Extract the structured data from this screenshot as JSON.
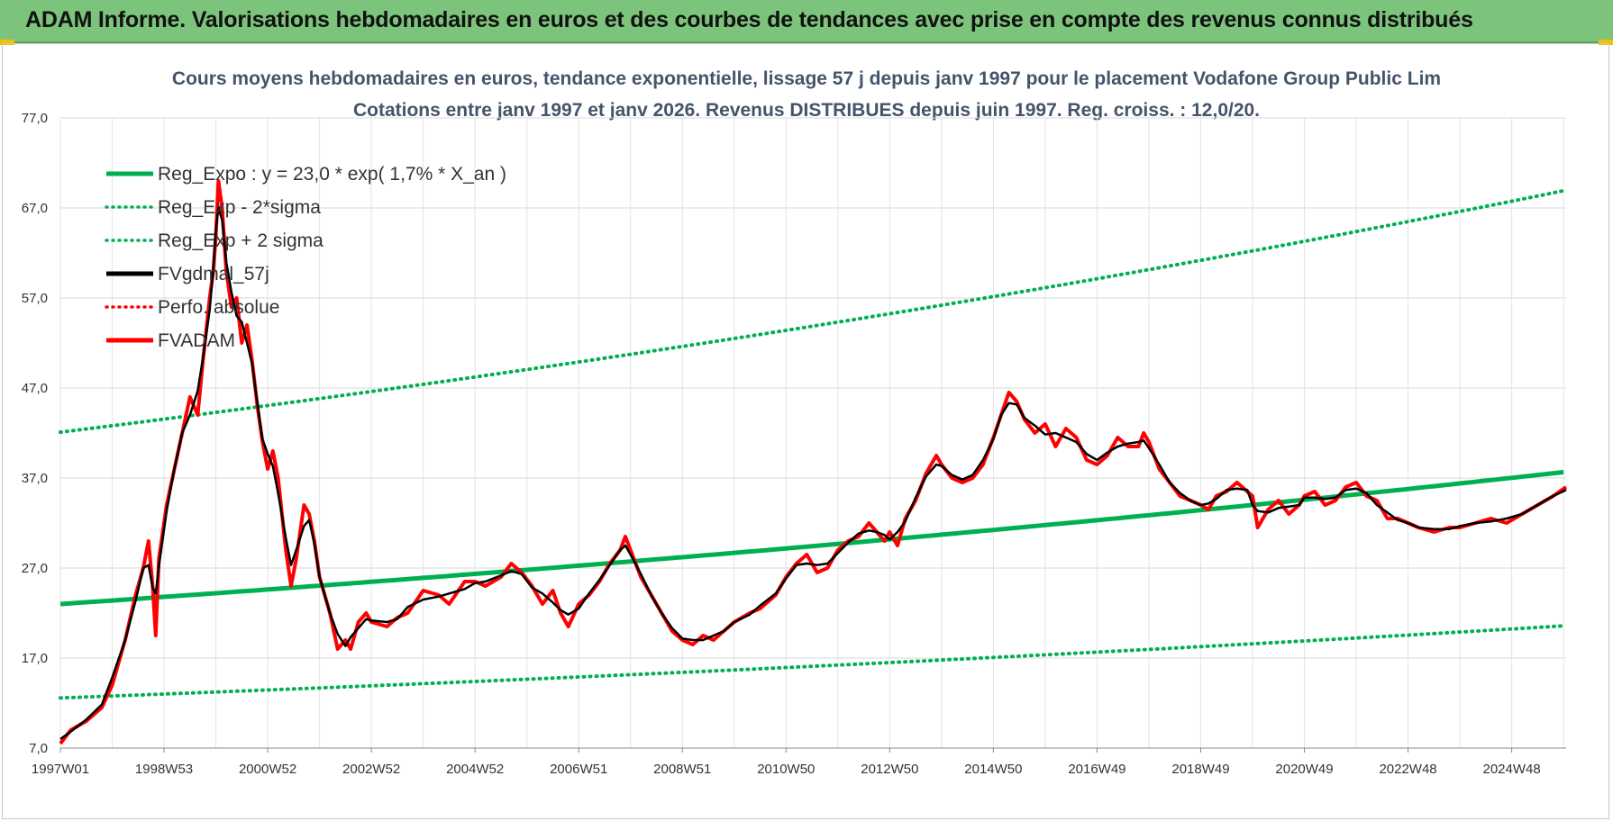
{
  "header": {
    "title": "ADAM Informe. Valorisations hebdomadaires en euros et des courbes de tendances avec prise en compte des revenus connus distribués"
  },
  "colors": {
    "header_bg": "#7cc47c",
    "reg_expo": "#00b050",
    "fv_gdma": "#000000",
    "perfo": "#ff0000",
    "fv_adam": "#ff0000"
  },
  "chart_data": {
    "type": "line",
    "title_line1": "Cours moyens hebdomadaires en euros, tendance exponentielle, lissage 57 j depuis janv 1997 pour le placement Vodafone Group Public Lim",
    "title_line2": "Cotations entre janv 1997 et janv 2026. Revenus DISTRIBUES depuis juin 1997. Reg. croiss. : 12,0/20.",
    "xlabel": "",
    "ylabel": "",
    "ylim": [
      7,
      77
    ],
    "xlim": [
      1997.0,
      2026.05
    ],
    "grid": true,
    "legend_position": "top-left",
    "y_ticks": [
      "77,0",
      "67,0",
      "57,0",
      "47,0",
      "37,0",
      "27,0",
      "17,0",
      "7,0"
    ],
    "y_tick_values": [
      77,
      67,
      57,
      47,
      37,
      27,
      17,
      7
    ],
    "x_ticks": [
      "1997W01",
      "1998W53",
      "2000W52",
      "2002W52",
      "2004W52",
      "2006W51",
      "2008W51",
      "2010W50",
      "2012W50",
      "2014W50",
      "2016W49",
      "2018W49",
      "2020W49",
      "2022W48",
      "2024W48"
    ],
    "x_tick_years": [
      1997.0,
      1999.0,
      2001.0,
      2003.0,
      2005.0,
      2007.0,
      2009.0,
      2011.0,
      2013.0,
      2015.0,
      2017.0,
      2019.0,
      2021.0,
      2023.0,
      2025.0
    ],
    "regression": {
      "base": 23.0,
      "rate": 0.017,
      "sigma_factor": 1.83
    },
    "legend": [
      {
        "label": "Reg_Expo : y = 23,0 * exp( 1,7% *  X_an )",
        "style": "solid",
        "color": "#00b050"
      },
      {
        "label": "Reg_Exp - 2*sigma",
        "style": "dotted",
        "color": "#00b050"
      },
      {
        "label": "Reg_Exp + 2 sigma",
        "style": "dotted",
        "color": "#00b050"
      },
      {
        "label": "FVgdmal_57j",
        "style": "solid",
        "color": "#000000"
      },
      {
        "label": "Perfo. absolue",
        "style": "dotted",
        "color": "#ff0000"
      },
      {
        "label": "FVADAM",
        "style": "solid",
        "color": "#ff0000"
      }
    ],
    "series": [
      {
        "name": "FVADAM",
        "points": [
          [
            1997.0,
            7.5
          ],
          [
            1997.2,
            9.0
          ],
          [
            1997.5,
            10.0
          ],
          [
            1997.8,
            11.5
          ],
          [
            1998.0,
            14.0
          ],
          [
            1998.25,
            19.0
          ],
          [
            1998.45,
            24.0
          ],
          [
            1998.6,
            27.0
          ],
          [
            1998.7,
            30.0
          ],
          [
            1998.78,
            25.0
          ],
          [
            1998.84,
            19.5
          ],
          [
            1998.9,
            28.0
          ],
          [
            1999.05,
            34.0
          ],
          [
            1999.2,
            38.0
          ],
          [
            1999.35,
            42.0
          ],
          [
            1999.5,
            46.0
          ],
          [
            1999.65,
            44.0
          ],
          [
            1999.75,
            50.0
          ],
          [
            1999.88,
            57.0
          ],
          [
            1999.95,
            60.0
          ],
          [
            2000.0,
            64.0
          ],
          [
            2000.05,
            70.0
          ],
          [
            2000.12,
            67.0
          ],
          [
            2000.2,
            60.0
          ],
          [
            2000.3,
            56.0
          ],
          [
            2000.4,
            57.0
          ],
          [
            2000.5,
            52.0
          ],
          [
            2000.6,
            54.0
          ],
          [
            2000.7,
            50.0
          ],
          [
            2000.8,
            45.0
          ],
          [
            2000.9,
            41.0
          ],
          [
            2001.0,
            38.0
          ],
          [
            2001.1,
            40.0
          ],
          [
            2001.2,
            37.0
          ],
          [
            2001.35,
            29.0
          ],
          [
            2001.45,
            25.0
          ],
          [
            2001.55,
            28.0
          ],
          [
            2001.7,
            34.0
          ],
          [
            2001.8,
            33.0
          ],
          [
            2001.9,
            30.0
          ],
          [
            2002.0,
            26.0
          ],
          [
            2002.2,
            22.0
          ],
          [
            2002.35,
            18.0
          ],
          [
            2002.5,
            19.0
          ],
          [
            2002.6,
            18.0
          ],
          [
            2002.75,
            21.0
          ],
          [
            2002.9,
            22.0
          ],
          [
            2003.0,
            21.0
          ],
          [
            2003.3,
            20.5
          ],
          [
            2003.5,
            21.5
          ],
          [
            2003.7,
            22.0
          ],
          [
            2004.0,
            24.5
          ],
          [
            2004.3,
            24.0
          ],
          [
            2004.5,
            23.0
          ],
          [
            2004.8,
            25.5
          ],
          [
            2005.0,
            25.5
          ],
          [
            2005.2,
            25.0
          ],
          [
            2005.5,
            26.0
          ],
          [
            2005.7,
            27.5
          ],
          [
            2005.9,
            26.5
          ],
          [
            2006.1,
            25.0
          ],
          [
            2006.3,
            23.0
          ],
          [
            2006.5,
            24.5
          ],
          [
            2006.65,
            22.0
          ],
          [
            2006.8,
            20.5
          ],
          [
            2007.0,
            23.0
          ],
          [
            2007.2,
            24.0
          ],
          [
            2007.4,
            25.5
          ],
          [
            2007.6,
            27.5
          ],
          [
            2007.8,
            29.0
          ],
          [
            2007.9,
            30.5
          ],
          [
            2008.0,
            29.0
          ],
          [
            2008.2,
            26.0
          ],
          [
            2008.4,
            24.0
          ],
          [
            2008.6,
            22.0
          ],
          [
            2008.8,
            20.0
          ],
          [
            2009.0,
            19.0
          ],
          [
            2009.2,
            18.5
          ],
          [
            2009.4,
            19.5
          ],
          [
            2009.6,
            19.0
          ],
          [
            2009.8,
            20.0
          ],
          [
            2010.0,
            21.0
          ],
          [
            2010.3,
            22.0
          ],
          [
            2010.5,
            22.5
          ],
          [
            2010.8,
            24.0
          ],
          [
            2011.0,
            26.0
          ],
          [
            2011.2,
            27.5
          ],
          [
            2011.4,
            28.5
          ],
          [
            2011.6,
            26.5
          ],
          [
            2011.8,
            27.0
          ],
          [
            2012.0,
            29.0
          ],
          [
            2012.2,
            30.0
          ],
          [
            2012.4,
            30.5
          ],
          [
            2012.6,
            32.0
          ],
          [
            2012.75,
            31.0
          ],
          [
            2012.9,
            30.0
          ],
          [
            2013.0,
            31.0
          ],
          [
            2013.15,
            29.5
          ],
          [
            2013.3,
            32.5
          ],
          [
            2013.5,
            34.5
          ],
          [
            2013.7,
            37.5
          ],
          [
            2013.9,
            39.5
          ],
          [
            2014.0,
            38.5
          ],
          [
            2014.2,
            37.0
          ],
          [
            2014.4,
            36.5
          ],
          [
            2014.6,
            37.0
          ],
          [
            2014.8,
            38.5
          ],
          [
            2015.0,
            41.5
          ],
          [
            2015.15,
            44.0
          ],
          [
            2015.3,
            46.5
          ],
          [
            2015.45,
            45.5
          ],
          [
            2015.6,
            43.5
          ],
          [
            2015.8,
            42.0
          ],
          [
            2016.0,
            43.0
          ],
          [
            2016.2,
            40.5
          ],
          [
            2016.4,
            42.5
          ],
          [
            2016.6,
            41.5
          ],
          [
            2016.8,
            39.0
          ],
          [
            2017.0,
            38.5
          ],
          [
            2017.2,
            39.5
          ],
          [
            2017.4,
            41.5
          ],
          [
            2017.6,
            40.5
          ],
          [
            2017.8,
            40.5
          ],
          [
            2017.9,
            42.0
          ],
          [
            2018.0,
            41.0
          ],
          [
            2018.2,
            38.0
          ],
          [
            2018.4,
            36.5
          ],
          [
            2018.6,
            35.0
          ],
          [
            2018.8,
            34.5
          ],
          [
            2019.0,
            34.0
          ],
          [
            2019.15,
            33.5
          ],
          [
            2019.3,
            35.0
          ],
          [
            2019.5,
            35.5
          ],
          [
            2019.7,
            36.5
          ],
          [
            2019.9,
            35.5
          ],
          [
            2020.0,
            35.0
          ],
          [
            2020.1,
            31.5
          ],
          [
            2020.3,
            33.5
          ],
          [
            2020.5,
            34.5
          ],
          [
            2020.7,
            33.0
          ],
          [
            2020.9,
            34.0
          ],
          [
            2021.0,
            35.0
          ],
          [
            2021.2,
            35.5
          ],
          [
            2021.4,
            34.0
          ],
          [
            2021.6,
            34.5
          ],
          [
            2021.8,
            36.0
          ],
          [
            2022.0,
            36.5
          ],
          [
            2022.2,
            35.0
          ],
          [
            2022.4,
            34.5
          ],
          [
            2022.6,
            32.5
          ],
          [
            2022.8,
            32.5
          ],
          [
            2023.0,
            32.0
          ],
          [
            2023.2,
            31.5
          ],
          [
            2023.5,
            31.0
          ],
          [
            2023.8,
            31.5
          ],
          [
            2024.0,
            31.5
          ],
          [
            2024.3,
            32.0
          ],
          [
            2024.6,
            32.5
          ],
          [
            2024.9,
            32.0
          ],
          [
            2025.2,
            33.0
          ],
          [
            2025.5,
            34.0
          ],
          [
            2025.8,
            35.0
          ],
          [
            2026.05,
            36.0
          ]
        ]
      }
    ]
  }
}
